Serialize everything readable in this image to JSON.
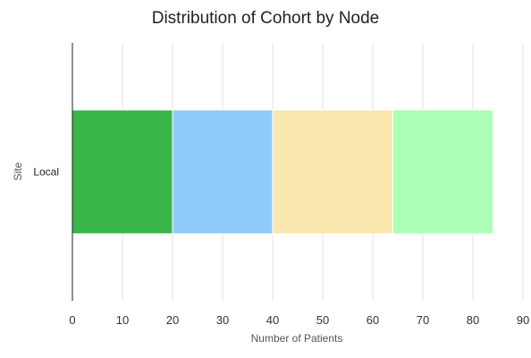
{
  "chart_data": {
    "type": "bar",
    "orientation": "horizontal",
    "stacked": true,
    "title": "Distribution of Cohort by Node",
    "xlabel": "Number of Patients",
    "ylabel": "Site",
    "categories": [
      "Local"
    ],
    "xlim": [
      0,
      90
    ],
    "x_ticks": [
      0,
      10,
      20,
      30,
      40,
      50,
      60,
      70,
      80,
      90
    ],
    "grid": true,
    "legend": "none",
    "series": [
      {
        "values": [
          20
        ],
        "color": "#39b54a"
      },
      {
        "values": [
          20
        ],
        "color": "#90caf9"
      },
      {
        "values": [
          24
        ],
        "color": "#fae7ad"
      },
      {
        "values": [
          20
        ],
        "color": "#aaffb4"
      }
    ]
  }
}
